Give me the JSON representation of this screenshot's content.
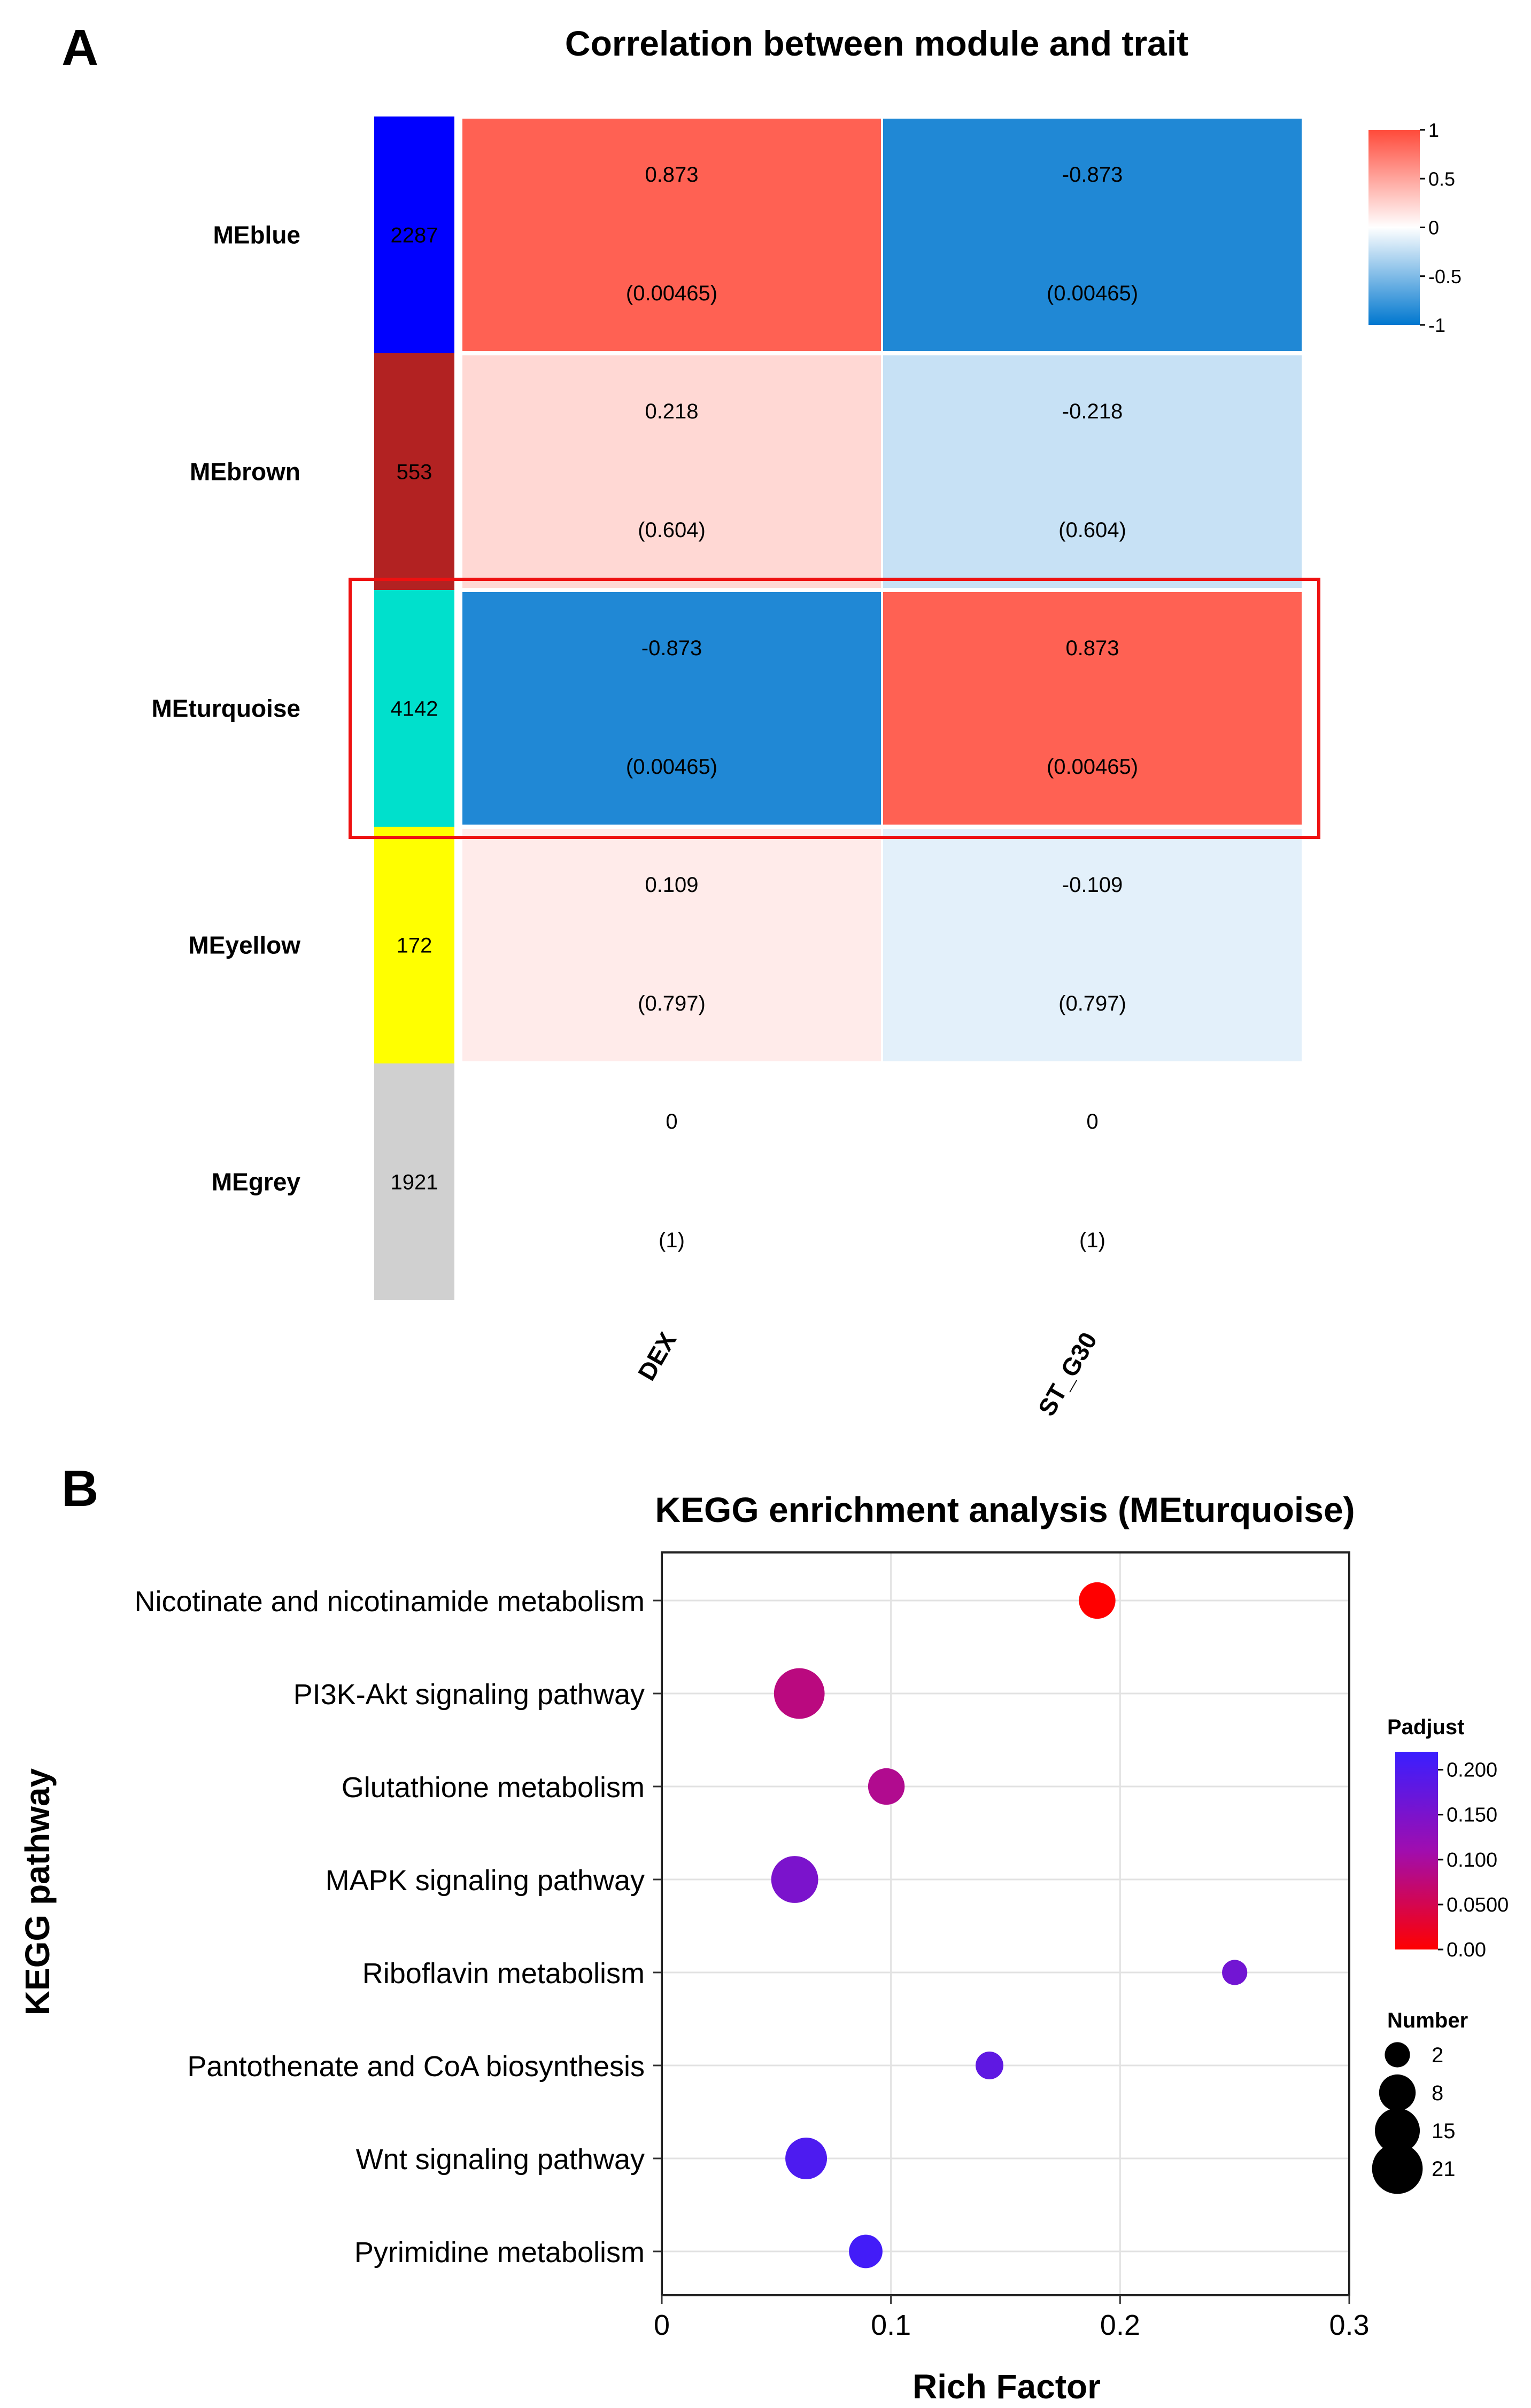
{
  "chart_data": [
    {
      "type": "heatmap",
      "panel_label": "A",
      "title": "Correlation between module and trait",
      "rows": [
        {
          "name": "MEblue",
          "count": "2287",
          "color": "#0000FF",
          "count_color": "#000000"
        },
        {
          "name": "MEbrown",
          "count": "553",
          "color": "#B22222",
          "count_color": "#000000"
        },
        {
          "name": "MEturquoise",
          "count": "4142",
          "color": "#00E0CC",
          "count_color": "#000000"
        },
        {
          "name": "MEyellow",
          "count": "172",
          "color": "#FFFF00",
          "count_color": "#000000"
        },
        {
          "name": "MEgrey",
          "count": "1921",
          "color": "#D0D0D0",
          "count_color": "#000000"
        }
      ],
      "columns": [
        "DEX",
        "ST_G30"
      ],
      "values": [
        [
          0.873,
          -0.873
        ],
        [
          0.218,
          -0.218
        ],
        [
          -0.873,
          0.873
        ],
        [
          0.109,
          -0.109
        ],
        [
          0,
          0
        ]
      ],
      "value_labels": [
        [
          "0.873",
          "-0.873"
        ],
        [
          "0.218",
          "-0.218"
        ],
        [
          "-0.873",
          "0.873"
        ],
        [
          "0.109",
          "-0.109"
        ],
        [
          "0",
          "0"
        ]
      ],
      "p_labels": [
        [
          "(0.00465)",
          "(0.00465)"
        ],
        [
          "(0.604)",
          "(0.604)"
        ],
        [
          "(0.00465)",
          "(0.00465)"
        ],
        [
          "(0.797)",
          "(0.797)"
        ],
        [
          "(1)",
          "(1)"
        ]
      ],
      "color_scale": {
        "min": -1,
        "max": 1,
        "low": "#0077CF",
        "mid": "#FFFFFF",
        "high": "#FF4A3A"
      },
      "colorbar_ticks": [
        "1",
        "0.5",
        "0",
        "-0.5",
        "-1"
      ],
      "highlight_row": "MEturquoise",
      "highlight_color": "#EE1111"
    },
    {
      "type": "scatter",
      "panel_label": "B",
      "title": "KEGG enrichment analysis (MEturquoise)",
      "xlabel": "Rich Factor",
      "ylabel": "KEGG pathway",
      "xlim": [
        0,
        0.3
      ],
      "xticks": [
        "0",
        "0.1",
        "0.2",
        "0.3"
      ],
      "pathways": [
        {
          "name": "Nicotinate and nicotinamide metabolism",
          "rich_factor": 0.19,
          "number": 8,
          "padjust": 0.0
        },
        {
          "name": "PI3K-Akt signaling pathway",
          "rich_factor": 0.06,
          "number": 21,
          "padjust": 0.08
        },
        {
          "name": "Glutathione metabolism",
          "rich_factor": 0.098,
          "number": 8,
          "padjust": 0.09
        },
        {
          "name": "MAPK signaling pathway",
          "rich_factor": 0.058,
          "number": 17,
          "padjust": 0.15
        },
        {
          "name": "Riboflavin metabolism",
          "rich_factor": 0.25,
          "number": 2,
          "padjust": 0.16
        },
        {
          "name": "Pantothenate and CoA biosynthesis",
          "rich_factor": 0.143,
          "number": 3,
          "padjust": 0.18
        },
        {
          "name": "Wnt signaling pathway",
          "rich_factor": 0.063,
          "number": 12,
          "padjust": 0.2
        },
        {
          "name": "Pyrimidine metabolism",
          "rich_factor": 0.089,
          "number": 6,
          "padjust": 0.21
        }
      ],
      "padjust_legend": {
        "title": "Padjust",
        "ticks": [
          "0.200",
          "0.150",
          "0.100",
          "0.0500",
          "0.00"
        ],
        "tick_values": [
          0.2,
          0.15,
          0.1,
          0.05,
          0.0
        ],
        "min": 0,
        "max": 0.22,
        "low_color": "#FF0000",
        "high_color": "#3A1EFF"
      },
      "number_legend": {
        "title": "Number",
        "labels": [
          "2",
          "8",
          "15",
          "21"
        ],
        "values": [
          2,
          8,
          15,
          21
        ]
      }
    }
  ]
}
